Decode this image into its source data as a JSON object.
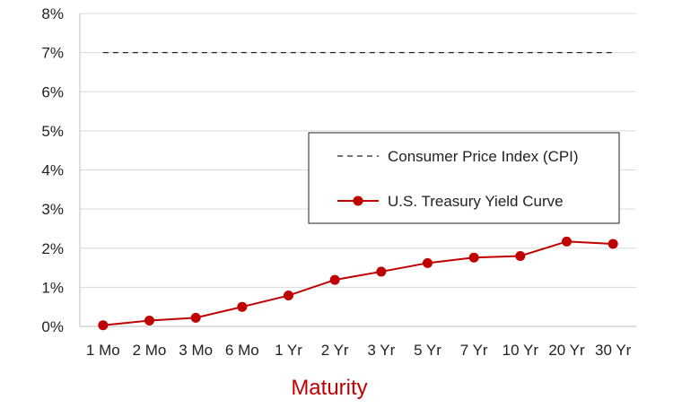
{
  "chart_data": {
    "type": "line",
    "categories": [
      "1 Mo",
      "2 Mo",
      "3 Mo",
      "6 Mo",
      "1 Yr",
      "2 Yr",
      "3 Yr",
      "5 Yr",
      "7 Yr",
      "10 Yr",
      "20 Yr",
      "30 Yr"
    ],
    "series": [
      {
        "name": "Consumer Price Index (CPI)",
        "style": "dashed",
        "color": "#222222",
        "values": [
          7.0,
          7.0,
          7.0,
          7.0,
          7.0,
          7.0,
          7.0,
          7.0,
          7.0,
          7.0,
          7.0,
          7.0
        ]
      },
      {
        "name": "U.S. Treasury Yield Curve",
        "style": "line-markers",
        "color": "#c00000",
        "values": [
          0.03,
          0.15,
          0.22,
          0.5,
          0.79,
          1.19,
          1.4,
          1.62,
          1.76,
          1.8,
          2.17,
          2.11
        ]
      }
    ],
    "xlabel": "Maturity",
    "xlabel_color": "#c00000",
    "ylabel": "",
    "ylim": [
      0,
      8
    ],
    "yticks": [
      "0%",
      "1%",
      "2%",
      "3%",
      "4%",
      "5%",
      "6%",
      "7%",
      "8%"
    ],
    "grid": true,
    "legend_position": "center-right"
  }
}
